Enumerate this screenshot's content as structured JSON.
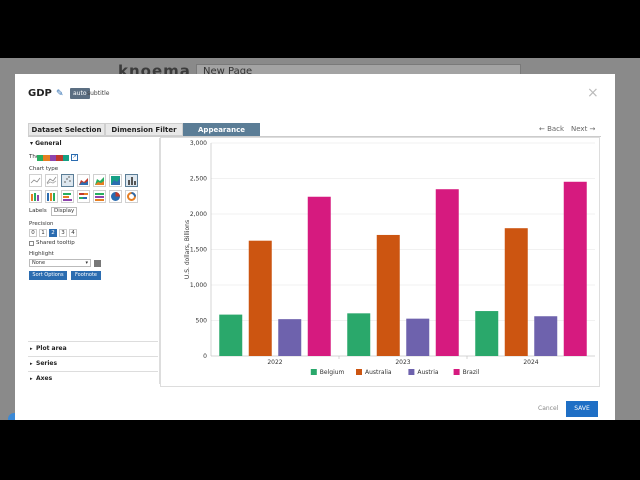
{
  "background": {
    "logo": "knoema",
    "title_value": "New Page"
  },
  "modal": {
    "title": "GDP",
    "auto_badge": "auto",
    "subtitle_label": "subtitle",
    "tabs": [
      "Dataset Selection",
      "Dimension Filter",
      "Appearance"
    ],
    "nav_back": "← Back",
    "nav_next": "Next →",
    "cancel_label": "Cancel",
    "save_label": "SAVE"
  },
  "panel": {
    "general": "General",
    "theme": "Theme",
    "theme_colors": [
      "#27ae60",
      "#e67e22",
      "#8e44ad",
      "#c0392b",
      "#16a085"
    ],
    "chart_type": "Chart type",
    "labels": "Labels",
    "labels_value": "Display",
    "precision": "Precision",
    "precision_options": [
      "0",
      "1",
      "2",
      "3",
      "4"
    ],
    "precision_selected": "2",
    "shared_tooltip": "Shared tooltip",
    "highlight": "Highlight",
    "highlight_value": "None",
    "sort_options": "Sort Options",
    "footnote": "Footnote",
    "plot_area": "Plot area",
    "series": "Series",
    "axes": "Axes"
  },
  "chart_data": {
    "type": "bar",
    "categories": [
      "2022",
      "2023",
      "2024"
    ],
    "series": [
      {
        "name": "Belgium",
        "color": "#2aa86b",
        "values": [
          583,
          601,
          633
        ]
      },
      {
        "name": "Australia",
        "color": "#cc5511",
        "values": [
          1624,
          1705,
          1800
        ]
      },
      {
        "name": "Austria",
        "color": "#6e62ad",
        "values": [
          519,
          526,
          560
        ]
      },
      {
        "name": "Brazil",
        "color": "#d61a7f",
        "values": [
          2243,
          2349,
          2454
        ]
      }
    ],
    "ylabel": "U.S. dollars, Billions",
    "ylim": [
      0,
      3000
    ],
    "yticks": [
      "0",
      "500",
      "1,000",
      "1,500",
      "2,000",
      "2,500",
      "3,000"
    ]
  }
}
